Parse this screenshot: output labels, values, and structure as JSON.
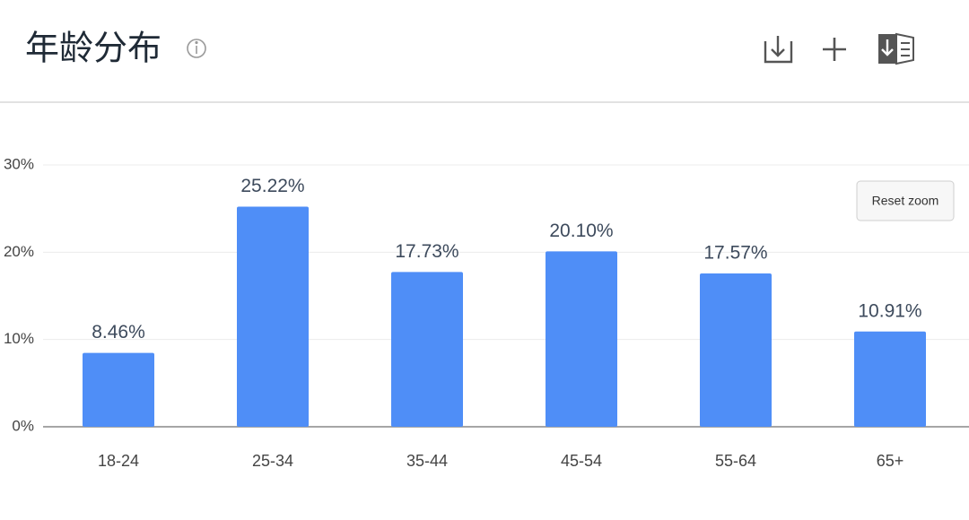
{
  "chart_data": {
    "type": "bar",
    "title": "年龄分布",
    "categories": [
      "18-24",
      "25-34",
      "35-44",
      "45-54",
      "55-64",
      "65+"
    ],
    "values": [
      8.46,
      25.22,
      17.73,
      20.1,
      17.57,
      10.91
    ],
    "value_labels": [
      "8.46%",
      "25.22%",
      "17.73%",
      "20.10%",
      "17.57%",
      "10.91%"
    ],
    "color": "#4f8ef7",
    "ylim": [
      0,
      30
    ],
    "yticks": [
      {
        "value": 0,
        "label": "0%"
      },
      {
        "value": 10,
        "label": "10%"
      },
      {
        "value": 20,
        "label": "20%"
      },
      {
        "value": 30,
        "label": "30%"
      }
    ],
    "grid": true
  },
  "controls": {
    "reset_zoom": "Reset zoom"
  }
}
